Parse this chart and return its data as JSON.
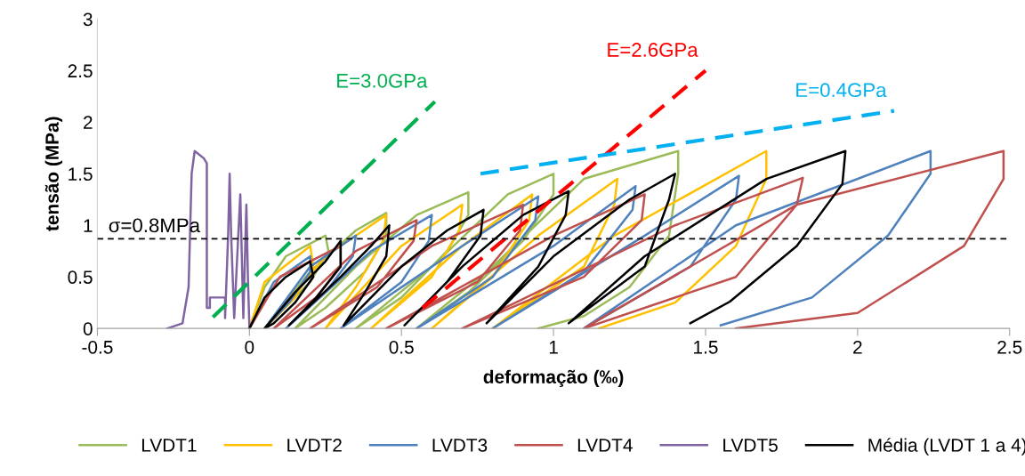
{
  "chart_data": {
    "type": "line",
    "xlabel": "deformação (‰)",
    "ylabel": "tensão (MPa)",
    "xlim": [
      -0.5,
      2.5
    ],
    "xticks": [
      -0.5,
      0,
      0.5,
      1,
      1.5,
      2,
      2.5
    ],
    "ylim": [
      0,
      3
    ],
    "yticks": [
      0,
      0.5,
      1,
      1.5,
      2,
      2.5,
      3
    ],
    "grid": false,
    "legend": "bottom",
    "marker": "none",
    "line_style": "solid",
    "series": [
      {
        "name": "LVDT1",
        "color": "#9bbb59",
        "x": [
          0,
          0.05,
          0.12,
          0.25,
          0.26,
          0.2,
          0.1,
          0.05,
          0.2,
          0.35,
          0.45,
          0.45,
          0.38,
          0.25,
          0.15,
          0.35,
          0.55,
          0.72,
          0.72,
          0.65,
          0.5,
          0.35,
          0.6,
          0.85,
          1.0,
          1.0,
          0.9,
          0.72,
          0.55,
          0.8,
          1.1,
          1.41,
          1.41,
          1.38,
          1.25,
          1.1,
          0.95
        ],
        "values": [
          0,
          0.4,
          0.7,
          0.9,
          0.75,
          0.45,
          0.15,
          0,
          0.55,
          0.95,
          1.12,
          0.9,
          0.55,
          0.2,
          0,
          0.6,
          1.1,
          1.32,
          1.1,
          0.75,
          0.3,
          0,
          0.6,
          1.3,
          1.5,
          1.3,
          0.85,
          0.35,
          0,
          0.6,
          1.45,
          1.72,
          1.5,
          0.9,
          0.4,
          0.12,
          0
        ]
      },
      {
        "name": "LVDT2",
        "color": "#ffc000",
        "x": [
          0,
          0.05,
          0.2,
          0.21,
          0.15,
          0.05,
          0.25,
          0.45,
          0.44,
          0.35,
          0.25,
          0.5,
          0.7,
          0.69,
          0.6,
          0.4,
          0.7,
          0.93,
          0.92,
          0.8,
          0.6,
          0.95,
          1.21,
          1.2,
          1.1,
          0.8,
          1.2,
          1.7,
          1.7,
          1.6,
          1.4,
          1.15
        ],
        "values": [
          0,
          0.45,
          0.8,
          0.6,
          0.3,
          0,
          0.7,
          1.1,
          0.85,
          0.4,
          0,
          0.8,
          1.2,
          0.95,
          0.5,
          0,
          0.8,
          1.3,
          1.05,
          0.5,
          0,
          0.9,
          1.45,
          1.2,
          0.6,
          0,
          0.9,
          1.72,
          1.45,
          0.8,
          0.25,
          0
        ]
      },
      {
        "name": "LVDT3",
        "color": "#4f81bd",
        "x": [
          0,
          0.08,
          0.2,
          0.2,
          0.13,
          0.05,
          0.2,
          0.35,
          0.34,
          0.25,
          0.12,
          0.4,
          0.6,
          0.59,
          0.5,
          0.3,
          0.7,
          0.95,
          0.94,
          0.8,
          0.55,
          1.0,
          1.27,
          1.26,
          1.1,
          0.8,
          1.3,
          1.61,
          1.6,
          1.45,
          1.1,
          1.6,
          2.24,
          2.24,
          2.1,
          1.85,
          1.55
        ],
        "values": [
          0,
          0.45,
          0.7,
          0.55,
          0.25,
          0,
          0.6,
          0.9,
          0.7,
          0.35,
          0,
          0.75,
          1.1,
          0.85,
          0.45,
          0,
          0.8,
          1.28,
          1.05,
          0.5,
          0,
          0.8,
          1.38,
          1.15,
          0.55,
          0,
          0.9,
          1.48,
          1.25,
          0.6,
          0,
          1.0,
          1.72,
          1.5,
          0.9,
          0.3,
          0.03
        ]
      },
      {
        "name": "LVDT4",
        "color": "#c0504d",
        "x": [
          0,
          0.1,
          0.3,
          0.3,
          0.22,
          0.08,
          0.35,
          0.55,
          0.54,
          0.42,
          0.2,
          0.6,
          0.9,
          0.89,
          0.75,
          0.45,
          1.0,
          1.3,
          1.29,
          1.1,
          0.7,
          1.4,
          1.82,
          1.8,
          1.6,
          1.1,
          1.8,
          2.48,
          2.48,
          2.35,
          2.0,
          1.6
        ],
        "values": [
          0,
          0.5,
          0.8,
          0.6,
          0.3,
          0,
          0.75,
          1.05,
          0.85,
          0.4,
          0,
          0.8,
          1.2,
          0.95,
          0.45,
          0,
          0.9,
          1.3,
          1.05,
          0.5,
          0,
          1.0,
          1.46,
          1.2,
          0.5,
          0,
          1.2,
          1.72,
          1.45,
          0.8,
          0.15,
          0
        ]
      },
      {
        "name": "LVDT5",
        "color": "#8064a2",
        "x": [
          -0.27,
          -0.22,
          -0.2,
          -0.19,
          -0.18,
          -0.15,
          -0.14,
          -0.14,
          -0.13,
          -0.13,
          -0.08,
          -0.08,
          -0.07,
          -0.065,
          -0.06,
          -0.05,
          -0.04,
          -0.03,
          -0.025,
          -0.02,
          -0.01,
          -0.005,
          0
        ],
        "values": [
          0,
          0.05,
          0.4,
          1.5,
          1.72,
          1.65,
          1.6,
          0.2,
          0.2,
          0.3,
          0.3,
          0.1,
          0.9,
          1.5,
          0.9,
          0.1,
          0.7,
          1.3,
          0.7,
          0.1,
          1.2,
          0.5,
          0
        ]
      },
      {
        "name": "Média (LVDT 1 a 4)",
        "color": "#000000",
        "x": [
          0,
          0.05,
          0.12,
          0.2,
          0.21,
          0.15,
          0.08,
          0.05,
          0.15,
          0.25,
          0.3,
          0.3,
          0.22,
          0.13,
          0.3,
          0.4,
          0.46,
          0.45,
          0.38,
          0.31,
          0.5,
          0.65,
          0.77,
          0.76,
          0.65,
          0.51,
          0.7,
          0.9,
          1.05,
          1.04,
          0.95,
          0.78,
          1.0,
          1.25,
          1.4,
          1.38,
          1.3,
          1.05,
          1.3,
          1.7,
          1.96,
          1.95,
          1.8,
          1.58,
          1.45
        ],
        "values": [
          0,
          0.3,
          0.5,
          0.65,
          0.5,
          0.25,
          0.05,
          0,
          0.35,
          0.65,
          0.85,
          0.6,
          0.3,
          0.03,
          0.5,
          0.8,
          1.0,
          0.7,
          0.35,
          0.03,
          0.6,
          0.95,
          1.15,
          0.9,
          0.45,
          0.03,
          0.6,
          1.1,
          1.33,
          1.1,
          0.6,
          0.05,
          0.7,
          1.25,
          1.5,
          1.25,
          0.6,
          0.05,
          0.7,
          1.45,
          1.72,
          1.4,
          0.8,
          0.26,
          0.05
        ]
      },
      {
        "type": "line",
        "line_style": "dashed",
        "color": "#00b050",
        "x": [
          -0.12,
          0.61
        ],
        "values": [
          0.11,
          2.2
        ]
      },
      {
        "type": "line",
        "line_style": "dashed",
        "color": "#ff0000",
        "x": [
          0.57,
          1.5
        ],
        "values": [
          0.2,
          2.5
        ]
      },
      {
        "type": "line",
        "line_style": "dashed",
        "color": "#00b0f0",
        "x": [
          0.76,
          2.12
        ],
        "values": [
          1.5,
          2.11
        ]
      }
    ],
    "ref_lines": [
      {
        "axis": "y",
        "value": 0.87,
        "color": "#000000",
        "line_style": "dashed"
      }
    ],
    "annotations": [
      "E=3.0GPa",
      "E=2.6GPa",
      "E=0.4GPa",
      "σ=0.8MPa"
    ]
  }
}
